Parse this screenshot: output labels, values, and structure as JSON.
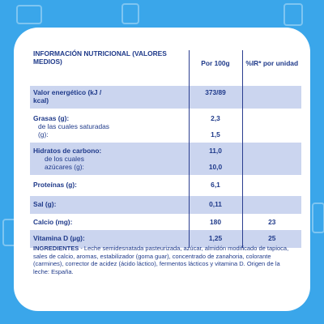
{
  "table": {
    "header": {
      "col1": "INFORMACIÓN NUTRICIONAL (VALORES MEDIOS)",
      "col2": "Por 100g",
      "col3": "%IR* por unidad"
    },
    "rows": [
      {
        "label": "Valor energético (kJ / kcal)",
        "value": "373/89",
        "ir": ""
      },
      {
        "label": "Grasas (g):",
        "sublabel": "de las cuales saturadas (g):",
        "value": "2,3",
        "subvalue": "1,5",
        "ir": ""
      },
      {
        "label": "Hidratos de carbono:",
        "sublabel": "de los cuales azúcares (g):",
        "value": "11,0",
        "subvalue": "10,0",
        "ir": ""
      },
      {
        "label": "Proteínas (g):",
        "value": "6,1",
        "ir": ""
      },
      {
        "label": "Sal (g):",
        "value": "0,11",
        "ir": ""
      },
      {
        "label": "Calcio (mg):",
        "value": "180",
        "ir": "23"
      },
      {
        "label": "Vitamina D (µg):",
        "value": "1,25",
        "ir": "25"
      }
    ]
  },
  "ingredients": {
    "label": "INGREDIENTES",
    "text": " - Leche semidesnatada pasteurizada, azúcar, almidón modificado de tapioca, sales de calcio, aromas, estabilizador (goma guar), concentrado de zanahoria, colorante (carmines), corrector de acidez (ácido láctico), fermentos lácticos y vitamina D. Origen de la leche: España."
  }
}
